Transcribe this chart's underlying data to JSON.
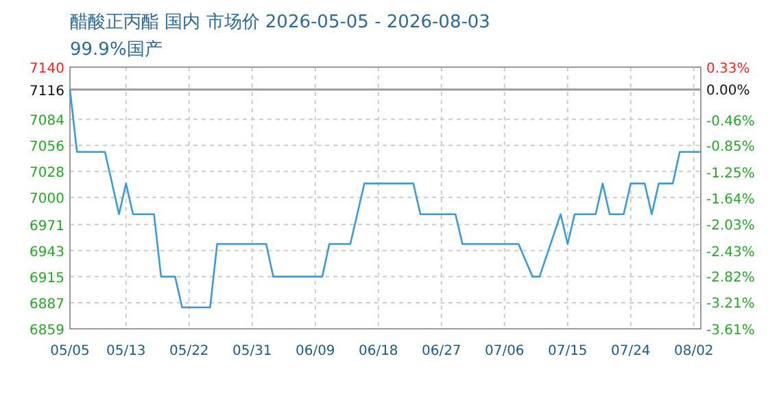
{
  "chart_data": {
    "type": "line",
    "title": "醋酸正丙酯 国内 市场价 2026-05-05 - 2026-08-03",
    "subtitle": "99.9%国产",
    "x": [
      "2026-05-05",
      "2026-05-06",
      "2026-05-10",
      "2026-05-12",
      "2026-05-13",
      "2026-05-14",
      "2026-05-17",
      "2026-05-18",
      "2026-05-20",
      "2026-05-21",
      "2026-05-25",
      "2026-05-26",
      "2026-06-02",
      "2026-06-03",
      "2026-06-10",
      "2026-06-11",
      "2026-06-14",
      "2026-06-16",
      "2026-06-23",
      "2026-06-24",
      "2026-06-29",
      "2026-06-30",
      "2026-07-08",
      "2026-07-10",
      "2026-07-11",
      "2026-07-14",
      "2026-07-15",
      "2026-07-16",
      "2026-07-19",
      "2026-07-20",
      "2026-07-21",
      "2026-07-23",
      "2026-07-24",
      "2026-07-26",
      "2026-07-27",
      "2026-07-28",
      "2026-07-30",
      "2026-07-31",
      "2026-08-03"
    ],
    "series": [
      {
        "color": "#3a9ad9",
        "values": [
          7116,
          7049,
          7049,
          6982,
          7015,
          6982,
          6982,
          6915,
          6915,
          6882,
          6882,
          6950,
          6950,
          6915,
          6915,
          6950,
          6950,
          7015,
          7015,
          6982,
          6982,
          6950,
          6950,
          6915,
          6915,
          6982,
          6950,
          6982,
          6982,
          7015,
          6982,
          6982,
          7015,
          7015,
          6982,
          7015,
          7015,
          7049,
          7049
        ]
      }
    ],
    "xlim": [
      "2026-05-05",
      "2026-08-03"
    ],
    "xticks": [
      {
        "value": "2026-05-05",
        "label": "05/05"
      },
      {
        "value": "2026-05-13",
        "label": "05/13"
      },
      {
        "value": "2026-05-22",
        "label": "05/22"
      },
      {
        "value": "2026-05-31",
        "label": "05/31"
      },
      {
        "value": "2026-06-09",
        "label": "06/09"
      },
      {
        "value": "2026-06-18",
        "label": "06/18"
      },
      {
        "value": "2026-06-27",
        "label": "06/27"
      },
      {
        "value": "2026-07-06",
        "label": "07/06"
      },
      {
        "value": "2026-07-15",
        "label": "07/15"
      },
      {
        "value": "2026-07-24",
        "label": "07/24"
      },
      {
        "value": "2026-08-02",
        "label": "08/02"
      }
    ],
    "ylim": [
      6859,
      7140
    ],
    "yticks": [
      6859,
      6887,
      6915,
      6943,
      6971,
      7000,
      7028,
      7056,
      7084,
      7116,
      7140
    ],
    "y2lim": [
      -3.61,
      0.33
    ],
    "y2ticks": [
      {
        "value": 0.33,
        "label": "0.33%"
      },
      {
        "value": 0,
        "label": "0.00%"
      },
      {
        "value": -0.46,
        "label": "-0.46%"
      },
      {
        "value": -0.85,
        "label": "-0.85%"
      },
      {
        "value": -1.25,
        "label": "-1.25%"
      },
      {
        "value": -1.64,
        "label": "-1.64%"
      },
      {
        "value": -2.03,
        "label": "-2.03%"
      },
      {
        "value": -2.43,
        "label": "-2.43%"
      },
      {
        "value": -2.82,
        "label": "-2.82%"
      },
      {
        "value": -3.21,
        "label": "-3.21%"
      },
      {
        "value": -3.61,
        "label": "-3.61%"
      }
    ],
    "ref_lines": [
      {
        "axis": "y",
        "value": 7116,
        "color": "#999999"
      }
    ],
    "grid": true,
    "marker": "none",
    "line_style": "solid"
  }
}
